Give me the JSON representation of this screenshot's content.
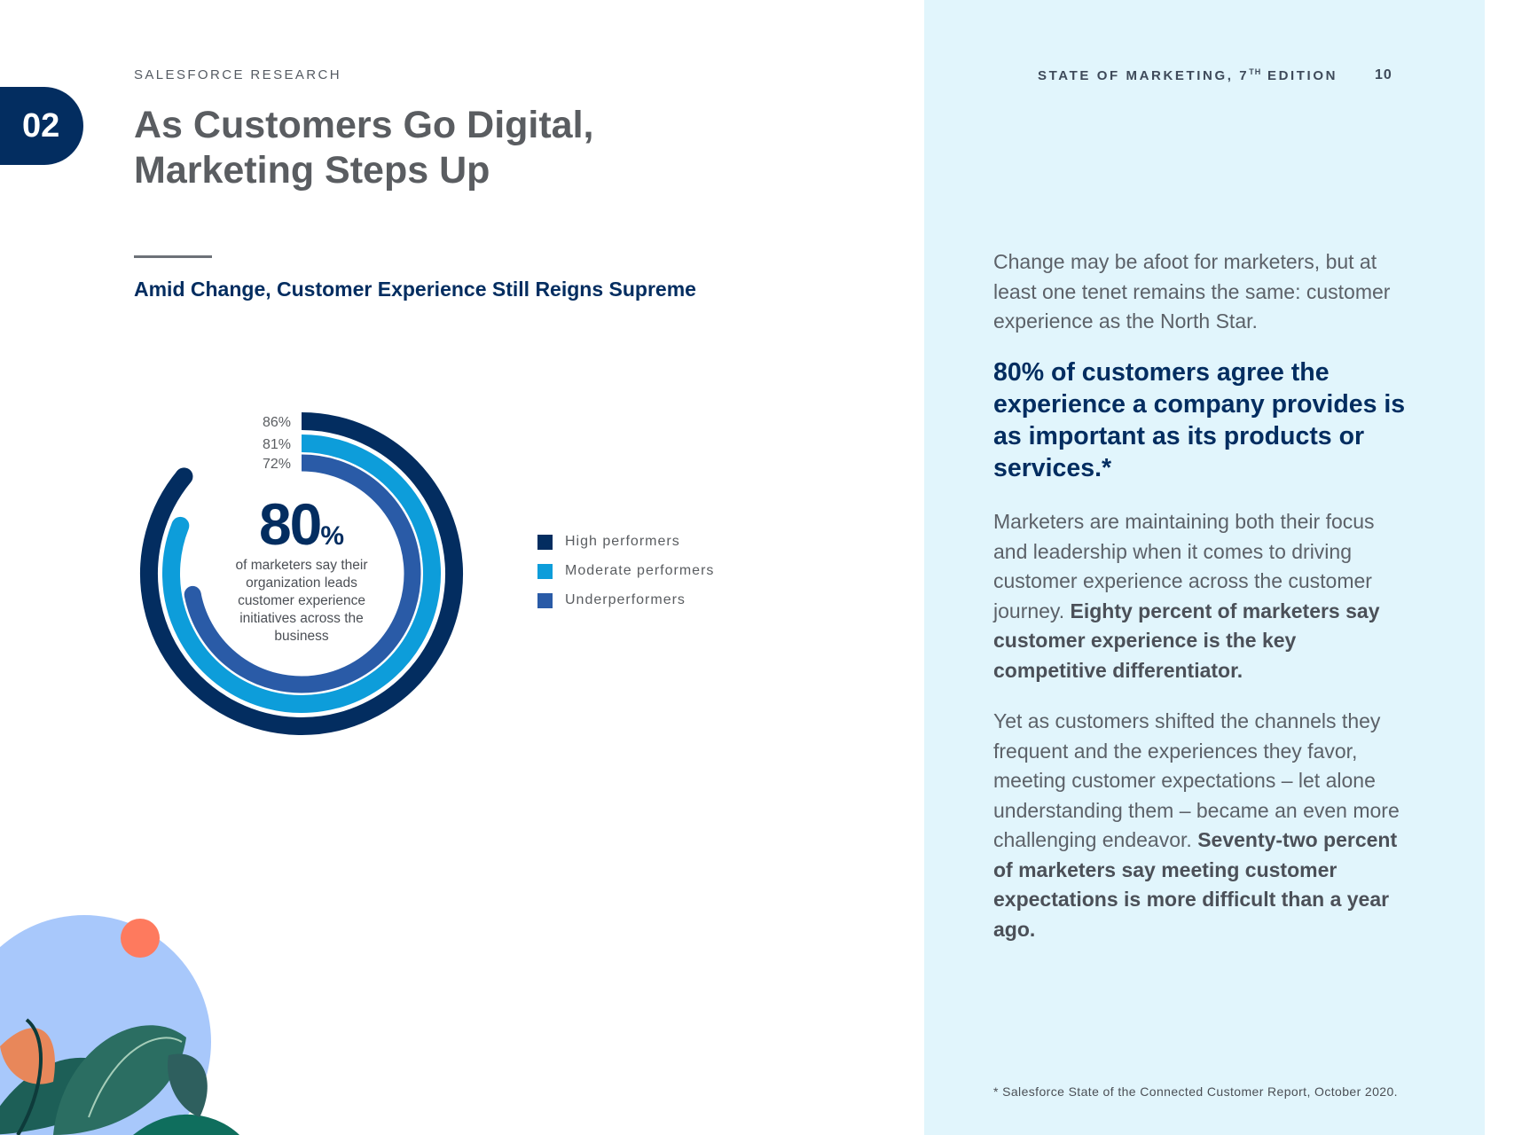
{
  "header": {
    "eyebrow": "SALESFORCE RESEARCH",
    "running_title": "STATE OF MARKETING, 7",
    "running_sup": "TH",
    "running_edition": " EDITION",
    "page_number": "10"
  },
  "section": {
    "number": "02"
  },
  "title": {
    "line1": "As Customers Go Digital,",
    "line2": "Marketing Steps Up"
  },
  "subhead": "Amid Change, Customer Experience Still Reigns Supreme",
  "stat": {
    "value": "80",
    "unit": "%",
    "caption_lines": [
      "of marketers say their",
      "organization leads",
      "customer experience",
      "initiatives across the",
      "business"
    ]
  },
  "chart_data": {
    "type": "radial-bar",
    "max": 100,
    "series": [
      {
        "name": "High performers",
        "value": 86,
        "label": "86%",
        "color": "#032d60"
      },
      {
        "name": "Moderate performers",
        "value": 81,
        "label": "81%",
        "color": "#0d9dda"
      },
      {
        "name": "Underperformers",
        "value": 72,
        "label": "72%",
        "color": "#2a5ba7"
      }
    ],
    "legend_position": "right"
  },
  "legend": [
    {
      "label": "High performers",
      "color": "#032d60"
    },
    {
      "label": "Moderate performers",
      "color": "#0d9dda"
    },
    {
      "label": "Underperformers",
      "color": "#2a5ba7"
    }
  ],
  "right": {
    "intro": "Change may be afoot for marketers, but at least one tenet remains the same: customer experience as the North Star.",
    "quote": "80% of customers agree the experience a company provides is as important as its products or services.*",
    "p1_text": "Marketers are maintaining both their focus and leadership when it comes to driving customer experience across the customer journey. ",
    "p1_bold": "Eighty percent of marketers say customer experience is the key competitive differentiator.",
    "p2_text": "Yet as customers shifted the channels they frequent and the experiences they favor, meeting customer expectations – let alone understanding them – became an even more challenging endeavor. ",
    "p2_bold": "Seventy-two percent of marketers say meeting customer expectations is more difficult than a year ago.",
    "footnote": "* Salesforce State of the Connected Customer Report, October 2020."
  },
  "colors": {
    "navy": "#032d60",
    "panel": "#e1f5fc",
    "decor_circle": "#a8c8fb",
    "decor_dot": "#fe7a5e"
  }
}
